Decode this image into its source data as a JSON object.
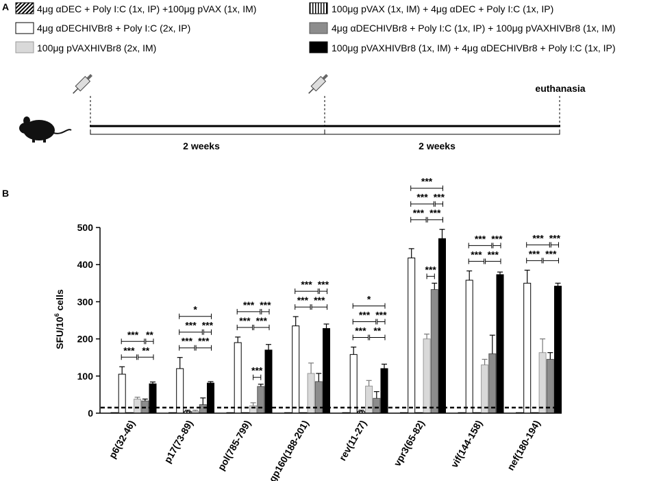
{
  "panel_a": {
    "label": "A",
    "legend": [
      {
        "pattern": "diag",
        "text": "4μg αDEC + Poly I:C (1x, IP) +100μg pVAX (1x, IM)"
      },
      {
        "pattern": "white",
        "text": "4μg αDECHIVBr8 + Poly I:C (2x, IP)"
      },
      {
        "pattern": "light",
        "text": "100μg pVAXHIVBr8 (2x, IM)"
      },
      {
        "pattern": "vert",
        "text": "100μg pVAX (1x, IM) + 4μg αDEC + Poly I:C (1x, IP)"
      },
      {
        "pattern": "grey",
        "text": "4μg αDECHIVBr8 + Poly I:C (1x, IP) + 100μg pVAXHIVBr8 (1x, IM)"
      },
      {
        "pattern": "black",
        "text": "100μg pVAXHIVBr8 (1x, IM) + 4μg αDECHIVBr8 + Poly I:C (1x, IP)"
      }
    ],
    "timeline": {
      "euthanasia_label": "euthanasia",
      "interval_labels": [
        "2 weeks",
        "2 weeks"
      ],
      "mouse_icon": "mouse-icon",
      "syringe_icon": "syringe-icon"
    }
  },
  "panel_b": {
    "label": "B",
    "chart_data": {
      "type": "bar",
      "ylabel_main": "SFU/10",
      "ylabel_sup": "6",
      "ylabel_tail": " cells",
      "ylim": [
        0,
        500
      ],
      "yticks": [
        "0",
        "100",
        "200",
        "300",
        "400",
        "500"
      ],
      "cutoff_line": 15,
      "categories": [
        "p6(32-46)",
        "p17(73-89)",
        "pol(785-799)",
        "gp160(188-201)",
        "rev(11-27)",
        "vpr3(65-82)",
        "vif(144-158)",
        "nef(180-194)"
      ],
      "series": [
        {
          "name": "4μg αDEC + Poly I:C (1x, IP) +100μg pVAX (1x, IM)",
          "pattern": "diag",
          "values": [
            0,
            0,
            0,
            0,
            0,
            0,
            0,
            0
          ],
          "errors": [
            0,
            0,
            0,
            0,
            0,
            0,
            0,
            0
          ]
        },
        {
          "name": "4μg αDECHIVBr8 + Poly I:C (2x, IP)",
          "pattern": "white",
          "values": [
            105,
            120,
            190,
            235,
            158,
            418,
            358,
            350
          ],
          "errors": [
            20,
            30,
            15,
            25,
            20,
            25,
            25,
            35
          ]
        },
        {
          "name": "100μg pVAX (1x, IM) + 4μg αDEC + Poly I:C (1x, IP)",
          "pattern": "vert",
          "values": [
            0,
            5,
            0,
            0,
            5,
            0,
            0,
            0
          ],
          "errors": [
            0,
            3,
            0,
            0,
            3,
            0,
            0,
            0
          ]
        },
        {
          "name": "100μg pVAXHIVBr8 (2x, IM)",
          "pattern": "light",
          "values": [
            38,
            5,
            20,
            107,
            73,
            200,
            130,
            163
          ],
          "errors": [
            5,
            3,
            8,
            28,
            15,
            13,
            15,
            37
          ]
        },
        {
          "name": "4μg αDECHIVBr8 + Poly I:C (1x, IP) + 100μg pVAXHIVBr8 (1x, IM)",
          "pattern": "grey",
          "values": [
            33,
            23,
            72,
            85,
            40,
            333,
            160,
            145
          ],
          "errors": [
            5,
            18,
            6,
            22,
            18,
            17,
            50,
            18
          ]
        },
        {
          "name": "100μg pVAXHIVBr8 (1x, IM) + 4μg αDECHIVBr8 + Poly I:C (1x, IP)",
          "pattern": "black",
          "values": [
            79,
            81,
            170,
            228,
            120,
            470,
            373,
            342
          ],
          "errors": [
            5,
            4,
            15,
            12,
            12,
            25,
            7,
            8
          ]
        }
      ],
      "significance": [
        {
          "category": 0,
          "rows": [
            [
              [
                "***",
                1,
                4
              ],
              [
                "**",
                4,
                5
              ]
            ],
            [
              [
                "***",
                1,
                3
              ],
              [
                "**",
                3,
                5
              ]
            ]
          ]
        },
        {
          "category": 1,
          "rows": [
            [
              [
                "*",
                1,
                5
              ]
            ],
            [
              [
                "***",
                1,
                4
              ],
              [
                "***",
                4,
                5
              ]
            ],
            [
              [
                "***",
                1,
                3
              ],
              [
                "***",
                3,
                5
              ]
            ]
          ]
        },
        {
          "category": 2,
          "rows": [
            [
              [
                "***",
                1,
                4
              ],
              [
                "***",
                4,
                5
              ]
            ],
            [
              [
                "***",
                1,
                3
              ],
              [
                "***",
                3,
                5
              ]
            ]
          ],
          "extra": [
            [
              "***",
              3,
              4
            ]
          ]
        },
        {
          "category": 3,
          "rows": [
            [
              [
                "***",
                1,
                4
              ],
              [
                "***",
                4,
                5
              ]
            ],
            [
              [
                "***",
                1,
                3
              ],
              [
                "***",
                3,
                5
              ]
            ]
          ]
        },
        {
          "category": 4,
          "rows": [
            [
              [
                "*",
                1,
                5
              ]
            ],
            [
              [
                "***",
                1,
                4
              ],
              [
                "***",
                4,
                5
              ]
            ],
            [
              [
                "***",
                1,
                3
              ],
              [
                "**",
                3,
                5
              ]
            ]
          ]
        },
        {
          "category": 5,
          "rows": [
            [
              [
                "***",
                1,
                5
              ]
            ],
            [
              [
                "***",
                1,
                4
              ],
              [
                "***",
                4,
                5
              ]
            ],
            [
              [
                "***",
                1,
                3
              ],
              [
                "***",
                3,
                5
              ]
            ]
          ],
          "extra": [
            [
              "***",
              3,
              4
            ]
          ]
        },
        {
          "category": 6,
          "rows": [
            [
              [
                "***",
                1,
                4
              ],
              [
                "***",
                4,
                5
              ]
            ],
            [
              [
                "***",
                1,
                3
              ],
              [
                "***",
                3,
                5
              ]
            ]
          ]
        },
        {
          "category": 7,
          "rows": [
            [
              [
                "***",
                1,
                4
              ],
              [
                "***",
                4,
                5
              ]
            ],
            [
              [
                "***",
                1,
                3
              ],
              [
                "***",
                3,
                5
              ]
            ]
          ]
        }
      ]
    }
  }
}
